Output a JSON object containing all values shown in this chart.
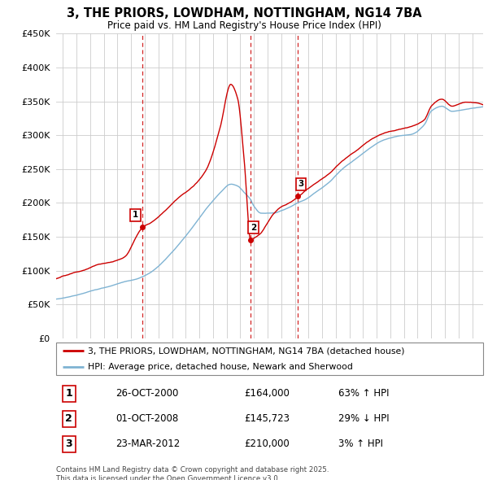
{
  "title": "3, THE PRIORS, LOWDHAM, NOTTINGHAM, NG14 7BA",
  "subtitle": "Price paid vs. HM Land Registry's House Price Index (HPI)",
  "ylim": [
    0,
    450000
  ],
  "xlim_years": [
    1994.5,
    2025.8
  ],
  "sale_dates": [
    "26-OCT-2000",
    "01-OCT-2008",
    "23-MAR-2012"
  ],
  "sale_prices": [
    164000,
    145723,
    210000
  ],
  "sale_labels": [
    "1",
    "2",
    "3"
  ],
  "sale_date_nums": [
    2000.82,
    2008.75,
    2012.23
  ],
  "sale_hpi_pct": [
    "63% ↑ HPI",
    "29% ↓ HPI",
    "3% ↑ HPI"
  ],
  "legend_line1": "3, THE PRIORS, LOWDHAM, NOTTINGHAM, NG14 7BA (detached house)",
  "legend_line2": "HPI: Average price, detached house, Newark and Sherwood",
  "footer": "Contains HM Land Registry data © Crown copyright and database right 2025.\nThis data is licensed under the Open Government Licence v3.0.",
  "line_red_color": "#cc0000",
  "line_blue_color": "#7fb3d3",
  "vline_color": "#cc0000",
  "grid_color": "#cccccc"
}
